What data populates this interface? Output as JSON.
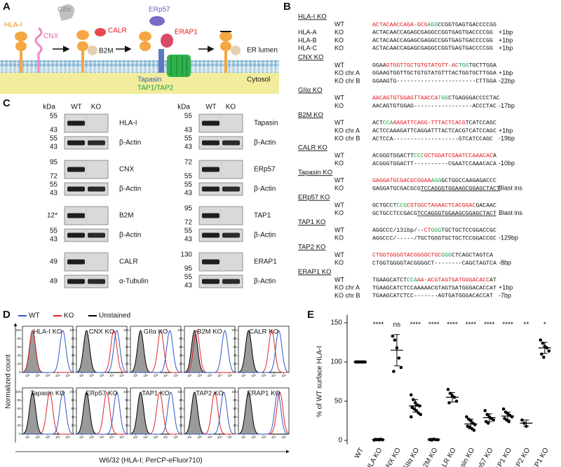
{
  "panel_a": {
    "letter": "A",
    "giia": "GIIα",
    "hla": "HLA-I",
    "cnx": "CNX",
    "calr": "CALR",
    "b2m": "B2M",
    "erp57": "ERp57",
    "erap1": "ERAP1",
    "lumen": "ER lumen",
    "cytosol": "Cytosol",
    "tapasin": "Tapasin",
    "tap": "TAP1/TAP2"
  },
  "panel_b": {
    "letter": "B",
    "sections": [
      {
        "title": "HLA-I KO",
        "rows": [
          {
            "status": "WT",
            "segments": [
              {
                "text": "ACTACAACCAGA-GCG",
                "color": "#e3161c"
              },
              {
                "text": "AGG",
                "color": "#1a9e48"
              },
              {
                "text": "CCGGTGAGTGACCCCGG",
                "color": "#111111"
              }
            ]
          },
          {
            "label": "HLA-A",
            "status": "KO",
            "segments": [
              {
                "text": "ACTACAACCAGAGCGAGGCCGGTGAGTGACCCCGG",
                "color": "#111111"
              }
            ],
            "note": "+1bp"
          },
          {
            "label": "HLA-B",
            "status": "KO",
            "segments": [
              {
                "text": "ACTACAACCAGAGCGAGGCCGGTGAGTGACCCCGG",
                "color": "#111111"
              }
            ],
            "note": "+1bp"
          },
          {
            "label": "HLA-C",
            "status": "KO",
            "segments": [
              {
                "text": "ACTACAACCAGAGCGAGGCCGGTGAGTGACCCCGG",
                "color": "#111111"
              }
            ],
            "note": "+1bp"
          }
        ]
      },
      {
        "title": "CNX KO",
        "rows": [
          {
            "status": "WT",
            "segments": [
              {
                "text": "GGAA",
                "color": "#111111"
              },
              {
                "text": "GTGGTTGCTGTGTATGTT-AC",
                "color": "#e3161c"
              },
              {
                "text": "TGG",
                "color": "#1a9e48"
              },
              {
                "text": "TGCTTGGA",
                "color": "#111111"
              }
            ]
          },
          {
            "status": "KO chr A",
            "segments": [
              {
                "text": "GGAAGTGGTTGCTGTGTATGTTTACTGGTGCTTGGA",
                "color": "#111111"
              }
            ],
            "note": "+1bp"
          },
          {
            "status": "KO chr B",
            "segments": [
              {
                "text": "GGAAGTG-----------------------CTTGGA",
                "color": "#111111"
              }
            ],
            "note": "-22bp"
          }
        ]
      },
      {
        "title": "GIIα KO",
        "rows": [
          {
            "status": "WT",
            "segments": [
              {
                "text": "AACAGTGTGGAGTTAACCA",
                "color": "#e3161c"
              },
              {
                "text": "TGG",
                "color": "#1a9e48"
              },
              {
                "text": "CTGAGGGACCCCTAC",
                "color": "#111111"
              }
            ]
          },
          {
            "status": "KO",
            "segments": [
              {
                "text": "AACAGTGTGGAG-----------------ACCCTAC",
                "color": "#111111"
              }
            ],
            "note": "-17bp"
          }
        ]
      },
      {
        "title": "B2M KO",
        "rows": [
          {
            "status": "WT",
            "segments": [
              {
                "text": "ACT",
                "color": "#111111"
              },
              {
                "text": "CCA",
                "color": "#1a9e48"
              },
              {
                "text": "AAGATTCAGG-TTTACTCACG",
                "color": "#e3161c"
              },
              {
                "text": "TCATCCAGC",
                "color": "#111111"
              }
            ]
          },
          {
            "status": "KO chr A",
            "segments": [
              {
                "text": "ACTCCAAAGATTCAGGATTTACTCACGTCATCCAGC",
                "color": "#111111"
              }
            ],
            "note": "+1bp"
          },
          {
            "status": "KO chr B",
            "segments": [
              {
                "text": "ACTCCA-------------------GTCATCCAGC",
                "color": "#111111"
              }
            ],
            "note": "-19bp"
          }
        ]
      },
      {
        "title": "CALR KO",
        "rows": [
          {
            "status": "WT",
            "segments": [
              {
                "text": "ACGGGTGGACTT",
                "color": "#111111"
              },
              {
                "text": "CCC",
                "color": "#1a9e48"
              },
              {
                "text": "GCTGGATCGAATCCAAACAC",
                "color": "#e3161c"
              },
              {
                "text": "A",
                "color": "#111111"
              }
            ]
          },
          {
            "status": "KO",
            "segments": [
              {
                "text": "ACGGGTGGACTT----------CGAATCCAAACACA",
                "color": "#111111"
              }
            ],
            "note": "-10bp"
          }
        ]
      },
      {
        "title": "Tapasin KO",
        "rows": [
          {
            "status": "WT",
            "segments": [
              {
                "text": "GAGGATGCGACGCGGAA",
                "color": "#e3161c"
              },
              {
                "text": "AGG",
                "color": "#1a9e48"
              },
              {
                "text": "GCTGGCCAAGAGACCC",
                "color": "#111111"
              }
            ]
          },
          {
            "status": "KO",
            "segments": [
              {
                "text": "GAGGATGCGACGCG",
                "color": "#111111"
              },
              {
                "text": "TCCAGGGTGGAAGCGGAGCTACT",
                "color": "#111111",
                "underline": true
              }
            ],
            "note": "Blast ins"
          }
        ]
      },
      {
        "title": "ERp57 KO",
        "rows": [
          {
            "status": "WT",
            "segments": [
              {
                "text": "GCTGCCT",
                "color": "#111111"
              },
              {
                "text": "CCG",
                "color": "#1a9e48"
              },
              {
                "text": "CGTGGCTAGAACTCACGGAC",
                "color": "#e3161c"
              },
              {
                "text": "GACAAC",
                "color": "#111111"
              }
            ]
          },
          {
            "status": "KO",
            "segments": [
              {
                "text": "GCTGCCTCCGACG",
                "color": "#111111"
              },
              {
                "text": "TCCAGGGTGGAAGCGGAGCTACT",
                "color": "#111111",
                "underline": true
              }
            ],
            "note": "Blast ins"
          }
        ]
      },
      {
        "title": "TAP1 KO",
        "rows": [
          {
            "status": "WT",
            "segments": [
              {
                "text": "AGGCCC/131bp/--",
                "color": "#111111"
              },
              {
                "text": "CT",
                "color": "#e3161c"
              },
              {
                "text": "GGG",
                "color": "#1a9e48"
              },
              {
                "text": "TGCTGCTCCGGACCGC",
                "color": "#111111"
              }
            ]
          },
          {
            "status": "KO",
            "segments": [
              {
                "text": "AGGCCC/-----/TGCTGGGTGCTGCTCCGGACCGC",
                "color": "#111111"
              }
            ],
            "note": "-129bp"
          }
        ]
      },
      {
        "title": "TAP2 KO",
        "rows": [
          {
            "status": "WT",
            "segments": [
              {
                "text": "CTGGTGGGGTACGGGGCTGC",
                "color": "#e3161c"
              },
              {
                "text": "GGG",
                "color": "#1a9e48"
              },
              {
                "text": "CTCAGCTAGTCA",
                "color": "#111111"
              }
            ]
          },
          {
            "status": "KO",
            "segments": [
              {
                "text": "CTGGTGGGGTACGGGGCT--------CAGCTAGTCA",
                "color": "#111111"
              }
            ],
            "note": "-8bp"
          }
        ]
      },
      {
        "title": "ERAP1 KO",
        "rows": [
          {
            "status": "WT",
            "segments": [
              {
                "text": "TGAAGCATCT",
                "color": "#111111"
              },
              {
                "text": "CCA",
                "color": "#1a9e48"
              },
              {
                "text": "AA-ACGTAGTGATGGGACACC",
                "color": "#e3161c"
              },
              {
                "text": "AT",
                "color": "#111111"
              }
            ]
          },
          {
            "status": "KO chr A",
            "segments": [
              {
                "text": "TGAAGCATCTCCAAAAACGTAGTGATGGGACACCAT",
                "color": "#111111"
              }
            ],
            "note": "+1bp"
          },
          {
            "status": "KO chr B",
            "segments": [
              {
                "text": "TGAAGCATCTCC-------AGTGATGGGACACCAT",
                "color": "#111111"
              }
            ],
            "note": "-7bp"
          }
        ]
      }
    ]
  },
  "panel_c": {
    "letter": "C",
    "header": {
      "kda": "kDa",
      "wt": "WT",
      "ko": "KO"
    },
    "columns": [
      [
        {
          "label": "HLA-I",
          "kda": [
            55,
            43
          ]
        },
        {
          "label": "β-Actin",
          "kda": [
            55,
            43
          ]
        },
        {
          "label": "CNX",
          "kda": [
            95,
            72
          ]
        },
        {
          "label": "β-Actin",
          "kda": [
            55,
            43
          ]
        },
        {
          "label": "B2M",
          "kda": [
            "12*"
          ]
        },
        {
          "label": "β-Actin",
          "kda": [
            55,
            43
          ]
        },
        {
          "label": "CALR",
          "kda": [
            49
          ]
        },
        {
          "label": "α-Tubulin",
          "kda": [
            49
          ]
        }
      ],
      [
        {
          "label": "Tapasin",
          "kda": [
            55,
            43
          ]
        },
        {
          "label": "β-Actin",
          "kda": [
            55,
            43
          ]
        },
        {
          "label": "ERp57",
          "kda": [
            72,
            55
          ]
        },
        {
          "label": "β-Actin",
          "kda": [
            55,
            43
          ]
        },
        {
          "label": "TAP1",
          "kda": [
            95,
            72
          ]
        },
        {
          "label": "β-Actin",
          "kda": [
            55,
            43
          ]
        },
        {
          "label": "ERAP1",
          "kda": [
            130,
            95
          ]
        },
        {
          "label": "β-Actin",
          "kda": [
            55,
            43
          ]
        }
      ]
    ]
  },
  "panel_d": {
    "letter": "D",
    "type": "histogram",
    "ylabel": "Normalized count",
    "xlabel": "W6/32 (HLA-I; PerCP-eFluor710)",
    "panels": [
      "HLA-I KO",
      "CNX KO",
      "GIIα KO",
      "B2M KO",
      "CALR KO",
      "Tapasin KO",
      "ERp57 KO",
      "TAP1 KO",
      "TAP2 KO",
      "ERAP1 KO"
    ],
    "xlim": [
      0.5,
      5.5
    ],
    "xticks": [
      {
        "value": 1,
        "label": "10¹"
      },
      {
        "value": 2,
        "label": "10²"
      },
      {
        "value": 3,
        "label": "10³"
      },
      {
        "value": 4,
        "label": "10⁴"
      },
      {
        "value": 5,
        "label": "10⁵"
      }
    ],
    "ylim": [
      0,
      110
    ],
    "yticks": [
      0,
      20,
      40,
      60,
      80,
      100
    ],
    "series": [
      {
        "name": "Unstained",
        "color": "#000000",
        "fill": "#9a9a9a",
        "values": [
          1.5,
          1.5,
          1.5,
          1.5,
          1.5,
          1.5,
          1.5,
          1.5,
          1.5,
          1.5
        ]
      },
      {
        "name": "KO",
        "color": "#e0242a",
        "values": [
          1.5,
          4.2,
          3.5,
          1.7,
          3.8,
          3.2,
          3.5,
          3.4,
          3.5,
          4.6
        ]
      },
      {
        "name": "WT",
        "color": "#2f55c8",
        "values": [
          4.5,
          4.5,
          4.4,
          4.5,
          4.5,
          4.5,
          4.5,
          4.5,
          4.4,
          4.4
        ]
      }
    ],
    "legend_order": [
      "WT",
      "KO",
      "Unstained"
    ]
  },
  "panel_e": {
    "letter": "E",
    "type": "scatter",
    "ylabel": "% of WT surface HLA-I",
    "categories": [
      "WT",
      "HLA KO",
      "CNX KO",
      "GIIα KO",
      "B2M KO",
      "CALR KO",
      "Tapasin KO",
      "ERp57 KO",
      "TAP1 KO",
      "TAP2 KO",
      "ERAP1 KO"
    ],
    "significance": [
      null,
      "****",
      "ns",
      "****",
      "****",
      "****",
      "****",
      "****",
      "****",
      "**",
      "*"
    ],
    "points": [
      [
        100,
        100,
        100,
        100,
        100,
        100,
        100,
        100,
        100,
        100
      ],
      [
        0.5,
        1,
        1,
        1.5,
        0.8,
        1.2,
        1,
        0.7
      ],
      [
        133,
        128,
        118,
        105,
        93,
        88
      ],
      [
        58,
        52,
        48,
        45,
        44,
        42,
        40,
        38,
        35,
        33,
        30
      ],
      [
        1,
        0.5,
        1.5,
        1,
        0.8,
        1.2,
        1
      ],
      [
        65,
        60,
        57,
        55,
        50,
        48
      ],
      [
        30,
        27,
        25,
        22,
        20,
        18,
        17,
        15,
        13
      ],
      [
        38,
        33,
        30,
        28,
        26,
        24,
        22
      ],
      [
        40,
        36,
        34,
        32,
        30,
        28,
        26,
        24
      ],
      [
        26,
        22,
        18
      ],
      [
        128,
        124,
        120,
        118,
        114,
        110,
        106
      ]
    ],
    "means": [
      100,
      1,
      115,
      44,
      1,
      55,
      21,
      29,
      31,
      22,
      118
    ],
    "sd": [
      0,
      0.4,
      20,
      8,
      0.4,
      6,
      6,
      5,
      5,
      4,
      7
    ],
    "ylim": [
      -5,
      160
    ],
    "yticks": [
      0,
      50,
      100,
      150
    ],
    "color": "#000000"
  }
}
